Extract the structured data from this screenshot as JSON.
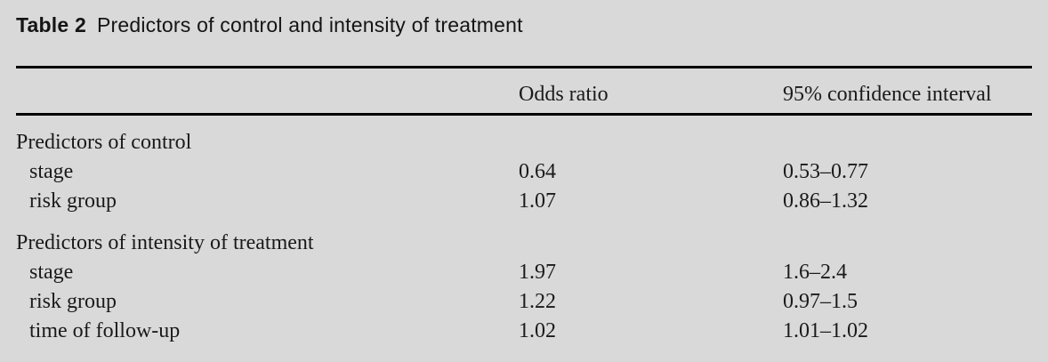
{
  "page": {
    "background": "#d9d9d9",
    "text_color": "#1a1a1a",
    "rule_color": "#000000"
  },
  "title": {
    "label": "Table 2",
    "text": "Predictors of control and intensity of treatment"
  },
  "table": {
    "header": {
      "odds_ratio": "Odds ratio",
      "confidence_interval": "95% confidence interval"
    },
    "sections": [
      {
        "heading": "Predictors of control",
        "rows": [
          {
            "label": "stage",
            "odds_ratio": "0.64",
            "ci": "0.53–0.77"
          },
          {
            "label": "risk group",
            "odds_ratio": "1.07",
            "ci": "0.86–1.32"
          }
        ]
      },
      {
        "heading": "Predictors of intensity of treatment",
        "rows": [
          {
            "label": "stage",
            "odds_ratio": "1.97",
            "ci": "1.6–2.4"
          },
          {
            "label": "risk group",
            "odds_ratio": "1.22",
            "ci": "0.97–1.5"
          },
          {
            "label": "time of follow-up",
            "odds_ratio": "1.02",
            "ci": "1.01–1.02"
          }
        ]
      }
    ]
  }
}
